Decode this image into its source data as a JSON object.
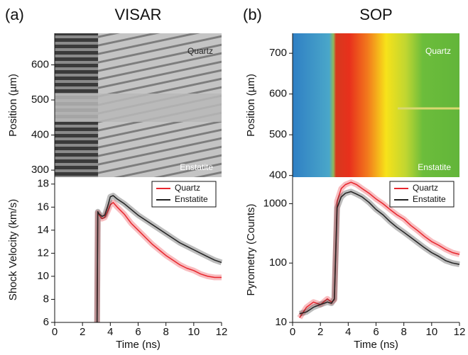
{
  "chart_data": [
    {
      "type": "image",
      "panel_label": "(a)",
      "title": "VISAR",
      "colormap": "gray",
      "ylabel": "Position (µm)",
      "ylim": [
        280,
        690
      ],
      "yticks": [
        300,
        400,
        500,
        600
      ],
      "annotations": [
        "Quartz",
        "Enstatite"
      ]
    },
    {
      "type": "line",
      "ylabel": "Shock Velocity (km/s)",
      "xlabel": "Time (ns)",
      "xlim": [
        0,
        12
      ],
      "xticks": [
        0,
        2,
        4,
        6,
        8,
        10,
        12
      ],
      "ylim": [
        6,
        18.6
      ],
      "yticks": [
        6,
        8,
        10,
        12,
        14,
        16,
        18
      ],
      "log_y": false,
      "legend": "upper right",
      "series": [
        {
          "name": "Quartz",
          "color": "#e8262d",
          "x": [
            3.05,
            3.1,
            3.2,
            3.4,
            3.6,
            3.8,
            4.0,
            4.2,
            4.5,
            5,
            5.5,
            6,
            6.5,
            7,
            7.5,
            8,
            8.5,
            9,
            9.5,
            10,
            10.5,
            11,
            11.5,
            12
          ],
          "values": [
            6,
            15.5,
            15.3,
            15.0,
            15.1,
            15.6,
            16.2,
            16.4,
            16.0,
            15.4,
            14.6,
            14.0,
            13.4,
            12.8,
            12.3,
            11.8,
            11.4,
            11.0,
            10.7,
            10.5,
            10.2,
            10.0,
            9.9,
            9.9
          ]
        },
        {
          "name": "Enstatite",
          "color": "#222222",
          "x": [
            3.05,
            3.1,
            3.2,
            3.4,
            3.6,
            3.8,
            4.0,
            4.2,
            4.5,
            5,
            5.5,
            6,
            6.5,
            7,
            7.5,
            8,
            8.5,
            9,
            9.5,
            10,
            10.5,
            11,
            11.5,
            12
          ],
          "values": [
            6,
            15.6,
            15.4,
            15.2,
            15.3,
            16.0,
            16.9,
            17.0,
            16.7,
            16.3,
            15.8,
            15.3,
            14.9,
            14.5,
            14.1,
            13.7,
            13.3,
            12.9,
            12.6,
            12.3,
            12.0,
            11.7,
            11.4,
            11.2
          ]
        }
      ]
    },
    {
      "type": "image",
      "panel_label": "(b)",
      "title": "SOP",
      "colormap": "jet",
      "ylabel": "Position (µm)",
      "ylim": [
        396,
        749
      ],
      "yticks": [
        400,
        500,
        600,
        700
      ],
      "annotations": [
        "Quartz",
        "Enstatite"
      ]
    },
    {
      "type": "line",
      "ylabel": "Pyrometry (Counts)",
      "xlabel": "Time (ns)",
      "xlim": [
        0,
        12
      ],
      "xticks": [
        0,
        2,
        4,
        6,
        8,
        10,
        12
      ],
      "ylim": [
        10,
        2800
      ],
      "yticks": [
        10,
        100,
        1000
      ],
      "log_y": true,
      "legend": "upper right",
      "series": [
        {
          "name": "Quartz",
          "color": "#e8262d",
          "x": [
            0.5,
            1,
            1.5,
            2,
            2.5,
            2.8,
            3.0,
            3.2,
            3.5,
            3.8,
            4.2,
            4.6,
            5,
            5.5,
            6,
            6.5,
            7,
            7.5,
            8,
            8.5,
            9,
            9.5,
            10,
            10.5,
            11,
            11.5,
            12
          ],
          "values": [
            12,
            18,
            22,
            20,
            25,
            22,
            24,
            1100,
            1800,
            2100,
            2300,
            2100,
            1800,
            1500,
            1200,
            1000,
            800,
            650,
            550,
            430,
            350,
            280,
            230,
            200,
            170,
            150,
            140
          ]
        },
        {
          "name": "Enstatite",
          "color": "#222222",
          "x": [
            0.5,
            1,
            1.5,
            2,
            2.5,
            2.8,
            3.0,
            3.2,
            3.5,
            3.8,
            4.2,
            4.6,
            5,
            5.5,
            6,
            6.5,
            7,
            7.5,
            8,
            8.5,
            9,
            9.5,
            10,
            10.5,
            11,
            11.5,
            12
          ],
          "values": [
            14,
            15,
            18,
            20,
            22,
            21,
            25,
            850,
            1300,
            1500,
            1600,
            1450,
            1300,
            1050,
            800,
            650,
            500,
            400,
            330,
            270,
            220,
            180,
            150,
            130,
            110,
            100,
            95
          ]
        }
      ]
    }
  ]
}
